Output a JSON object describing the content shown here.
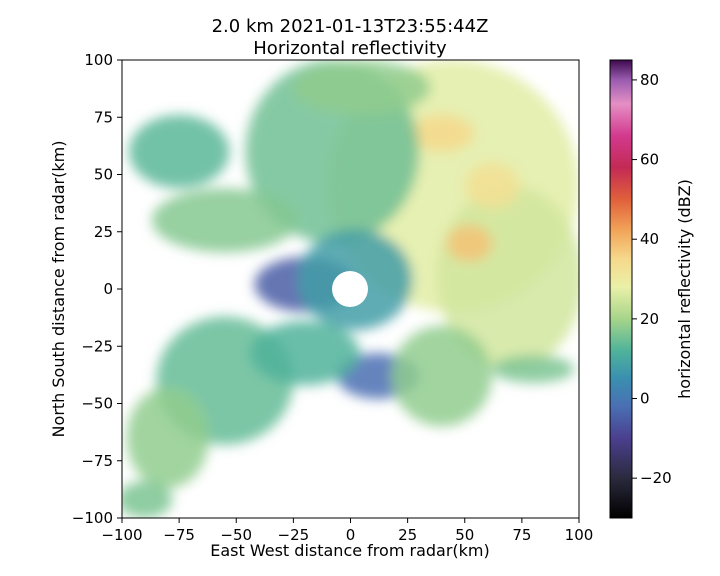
{
  "chart_data": {
    "type": "heatmap",
    "title_line1": "2.0 km 2021-01-13T23:55:44Z",
    "title_line2": "Horizontal reflectivity",
    "xlabel": "East West distance from radar(km)",
    "ylabel": "North South distance from radar(km)",
    "xlim": [
      -100,
      100
    ],
    "ylim": [
      -100,
      100
    ],
    "xticks": [
      -100,
      -75,
      -50,
      -25,
      0,
      25,
      50,
      75,
      100
    ],
    "yticks": [
      -100,
      -75,
      -50,
      -25,
      0,
      25,
      50,
      75,
      100
    ],
    "colorbar": {
      "label": "horizontal reflectivity (dBZ)",
      "range": [
        -30,
        85
      ],
      "ticks": [
        -20,
        0,
        20,
        40,
        60,
        80
      ],
      "colormap": "spectral-like",
      "stops": [
        {
          "v": -30,
          "c": "#000000"
        },
        {
          "v": -20,
          "c": "#2b2a3d"
        },
        {
          "v": -10,
          "c": "#4b3f8f"
        },
        {
          "v": -2,
          "c": "#4a6fb3"
        },
        {
          "v": 5,
          "c": "#3a8fb0"
        },
        {
          "v": 12,
          "c": "#4fb39a"
        },
        {
          "v": 20,
          "c": "#a6d58a"
        },
        {
          "v": 28,
          "c": "#eaf0a8"
        },
        {
          "v": 35,
          "c": "#f6d98c"
        },
        {
          "v": 42,
          "c": "#f2a65a"
        },
        {
          "v": 50,
          "c": "#e0603b"
        },
        {
          "v": 58,
          "c": "#c32a55"
        },
        {
          "v": 66,
          "c": "#d23a8e"
        },
        {
          "v": 74,
          "c": "#e58fc4"
        },
        {
          "v": 80,
          "c": "#9a5cb0"
        },
        {
          "v": 85,
          "c": "#3d0a4d"
        }
      ]
    },
    "echo_regions": [
      {
        "name": "north-east-field",
        "x": 45,
        "y": 45,
        "rx": 55,
        "ry": 55,
        "dbz": 27
      },
      {
        "name": "east-field",
        "x": 70,
        "y": 5,
        "rx": 32,
        "ry": 40,
        "dbz": 25
      },
      {
        "name": "orange-core-1",
        "x": 52,
        "y": 20,
        "rx": 10,
        "ry": 8,
        "dbz": 38
      },
      {
        "name": "orange-core-2",
        "x": 40,
        "y": 68,
        "rx": 14,
        "ry": 8,
        "dbz": 35
      },
      {
        "name": "orange-core-3",
        "x": 62,
        "y": 45,
        "rx": 12,
        "ry": 10,
        "dbz": 33
      },
      {
        "name": "north-central",
        "x": -8,
        "y": 60,
        "rx": 38,
        "ry": 40,
        "dbz": 15
      },
      {
        "name": "north-green",
        "x": 5,
        "y": 88,
        "rx": 30,
        "ry": 12,
        "dbz": 18
      },
      {
        "name": "west-band",
        "x": -55,
        "y": 30,
        "rx": 32,
        "ry": 14,
        "dbz": 17
      },
      {
        "name": "north-west-band",
        "x": -75,
        "y": 60,
        "rx": 22,
        "ry": 16,
        "dbz": 13
      },
      {
        "name": "central-purple",
        "x": -20,
        "y": 2,
        "rx": 22,
        "ry": 12,
        "dbz": -5
      },
      {
        "name": "near-radar-ring",
        "x": 2,
        "y": 4,
        "rx": 25,
        "ry": 22,
        "dbz": 8
      },
      {
        "name": "south-center-purple",
        "x": 12,
        "y": -38,
        "rx": 18,
        "ry": 10,
        "dbz": -2
      },
      {
        "name": "south-east-field",
        "x": 40,
        "y": -38,
        "rx": 22,
        "ry": 22,
        "dbz": 18
      },
      {
        "name": "south-west-field",
        "x": -55,
        "y": -40,
        "rx": 30,
        "ry": 28,
        "dbz": 14
      },
      {
        "name": "south-west-green",
        "x": -80,
        "y": -65,
        "rx": 18,
        "ry": 22,
        "dbz": 18
      },
      {
        "name": "south-west-tail",
        "x": -90,
        "y": -92,
        "rx": 12,
        "ry": 8,
        "dbz": 16
      },
      {
        "name": "mid-south",
        "x": -20,
        "y": -28,
        "rx": 24,
        "ry": 14,
        "dbz": 12
      },
      {
        "name": "south-east-streak",
        "x": 80,
        "y": -35,
        "rx": 18,
        "ry": 6,
        "dbz": 16
      }
    ]
  }
}
